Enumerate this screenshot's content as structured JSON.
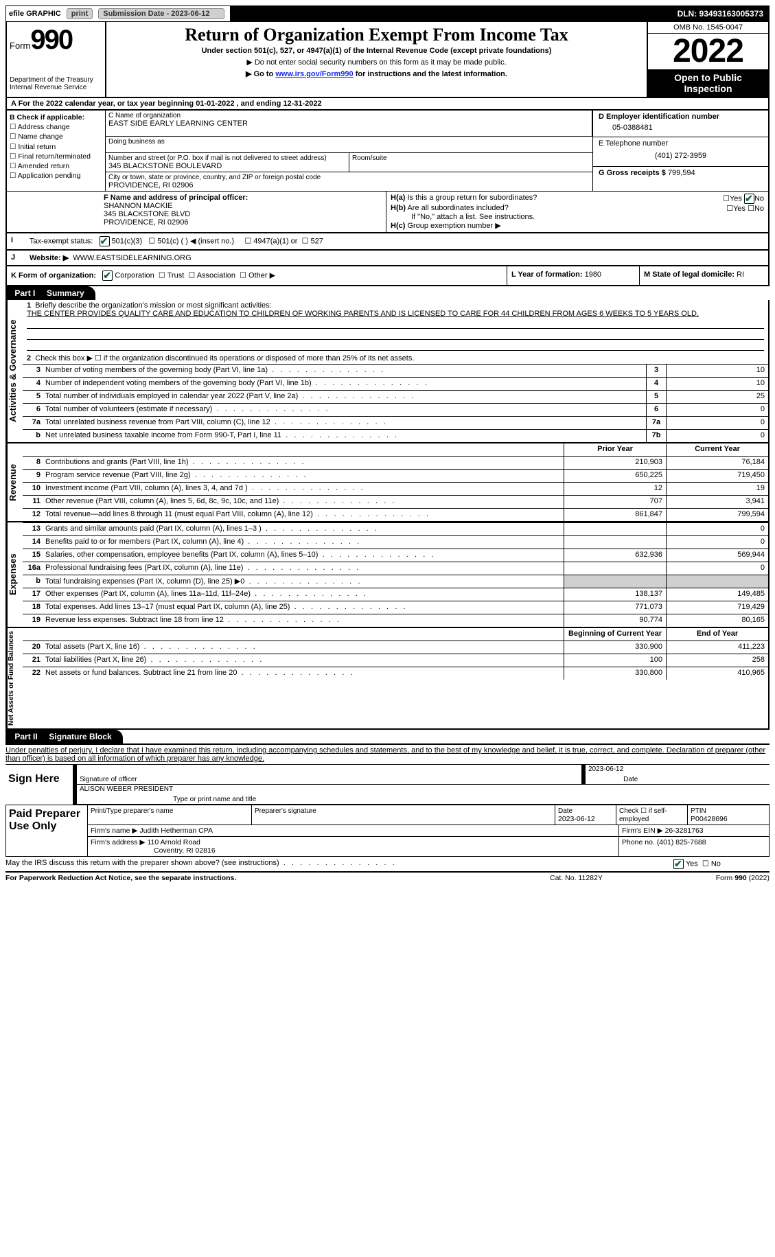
{
  "topbar": {
    "efile_label": "efile GRAPHIC",
    "print_btn": "print",
    "submission_label": "Submission Date - 2023-06-12",
    "dln_label": "DLN: 93493163005373"
  },
  "header": {
    "form_word": "Form",
    "form_number": "990",
    "dept": "Department of the Treasury",
    "irs": "Internal Revenue Service",
    "title": "Return of Organization Exempt From Income Tax",
    "subtitle": "Under section 501(c), 527, or 4947(a)(1) of the Internal Revenue Code (except private foundations)",
    "note1": "▶ Do not enter social security numbers on this form as it may be made public.",
    "note2_pre": "▶ Go to ",
    "note2_link": "www.irs.gov/Form990",
    "note2_post": " for instructions and the latest information.",
    "omb": "OMB No. 1545-0047",
    "year": "2022",
    "open_l1": "Open to Public",
    "open_l2": "Inspection"
  },
  "rowA": "A For the 2022 calendar year, or tax year beginning 01-01-2022   , and ending 12-31-2022",
  "boxB": {
    "label": "B Check if applicable:",
    "items": [
      "Address change",
      "Name change",
      "Initial return",
      "Final return/terminated",
      "Amended return",
      "Application pending"
    ]
  },
  "boxC": {
    "label": "C Name of organization",
    "name": "EAST SIDE EARLY LEARNING CENTER",
    "dba_label": "Doing business as",
    "street_label": "Number and street (or P.O. box if mail is not delivered to street address)",
    "room_label": "Room/suite",
    "street": "345 BLACKSTONE BOULEVARD",
    "city_label": "City or town, state or province, country, and ZIP or foreign postal code",
    "city": "PROVIDENCE, RI  02906"
  },
  "boxD": {
    "label": "D Employer identification number",
    "value": "05-0388481"
  },
  "boxE": {
    "label": "E Telephone number",
    "value": "(401) 272-3959"
  },
  "boxG": {
    "label": "G Gross receipts $",
    "value": "799,594"
  },
  "boxF": {
    "label": "F Name and address of principal officer:",
    "name": "SHANNON MACKIE",
    "street": "345 BLACKSTONE BLVD",
    "city": "PROVIDENCE, RI  02906"
  },
  "boxH": {
    "a_label": "Is this a group return for subordinates?",
    "a_prefix": "H(a)",
    "b_label": "Are all subordinates included?",
    "b_prefix": "H(b)",
    "b_note": "If \"No,\" attach a list. See instructions.",
    "c_prefix": "H(c)",
    "c_label": "Group exemption number ▶",
    "yes": "Yes",
    "no": "No"
  },
  "boxI": {
    "label": "Tax-exempt status:",
    "opt1": "501(c)(3)",
    "opt2": "501(c) (   ) ◀ (insert no.)",
    "opt3": "4947(a)(1) or",
    "opt4": "527"
  },
  "boxJ": {
    "label": "Website: ▶",
    "value": "WWW.EASTSIDELEARNING.ORG"
  },
  "boxK": {
    "label": "K Form of organization:",
    "opts": [
      "Corporation",
      "Trust",
      "Association",
      "Other ▶"
    ]
  },
  "boxL": {
    "label": "L Year of formation:",
    "value": "1980"
  },
  "boxM": {
    "label": "M State of legal domicile:",
    "value": "RI"
  },
  "part1": {
    "title": "Part I",
    "name": "Summary",
    "mission_label": "Briefly describe the organization's mission or most significant activities:",
    "mission": "THE CENTER PROVIDES QUALITY CARE AND EDUCATION TO CHILDREN OF WORKING PARENTS AND IS LICENSED TO CARE FOR 44 CHILDREN FROM AGES 6 WEEKS TO 5 YEARS OLD.",
    "line2": "Check this box ▶ ☐ if the organization discontinued its operations or disposed of more than 25% of its net assets.",
    "tabs": {
      "gov": "Activities & Governance",
      "rev": "Revenue",
      "exp": "Expenses",
      "net": "Net Assets or Fund Balances"
    },
    "lines_gov": [
      {
        "no": "3",
        "txt": "Number of voting members of the governing body (Part VI, line 1a)",
        "box": "3",
        "val": "10"
      },
      {
        "no": "4",
        "txt": "Number of independent voting members of the governing body (Part VI, line 1b)",
        "box": "4",
        "val": "10"
      },
      {
        "no": "5",
        "txt": "Total number of individuals employed in calendar year 2022 (Part V, line 2a)",
        "box": "5",
        "val": "25"
      },
      {
        "no": "6",
        "txt": "Total number of volunteers (estimate if necessary)",
        "box": "6",
        "val": "0"
      },
      {
        "no": "7a",
        "txt": "Total unrelated business revenue from Part VIII, column (C), line 12",
        "box": "7a",
        "val": "0"
      },
      {
        "no": "b",
        "txt": "Net unrelated business taxable income from Form 990-T, Part I, line 11",
        "box": "7b",
        "val": "0"
      }
    ],
    "col_hdr": {
      "prior": "Prior Year",
      "current": "Current Year",
      "begin": "Beginning of Current Year",
      "end": "End of Year"
    },
    "lines_rev": [
      {
        "no": "8",
        "txt": "Contributions and grants (Part VIII, line 1h)",
        "p": "210,903",
        "c": "76,184"
      },
      {
        "no": "9",
        "txt": "Program service revenue (Part VIII, line 2g)",
        "p": "650,225",
        "c": "719,450"
      },
      {
        "no": "10",
        "txt": "Investment income (Part VIII, column (A), lines 3, 4, and 7d )",
        "p": "12",
        "c": "19"
      },
      {
        "no": "11",
        "txt": "Other revenue (Part VIII, column (A), lines 5, 6d, 8c, 9c, 10c, and 11e)",
        "p": "707",
        "c": "3,941"
      },
      {
        "no": "12",
        "txt": "Total revenue—add lines 8 through 11 (must equal Part VIII, column (A), line 12)",
        "p": "861,847",
        "c": "799,594"
      }
    ],
    "lines_exp": [
      {
        "no": "13",
        "txt": "Grants and similar amounts paid (Part IX, column (A), lines 1–3 )",
        "p": "",
        "c": "0"
      },
      {
        "no": "14",
        "txt": "Benefits paid to or for members (Part IX, column (A), line 4)",
        "p": "",
        "c": "0"
      },
      {
        "no": "15",
        "txt": "Salaries, other compensation, employee benefits (Part IX, column (A), lines 5–10)",
        "p": "632,936",
        "c": "569,944"
      },
      {
        "no": "16a",
        "txt": "Professional fundraising fees (Part IX, column (A), line 11e)",
        "p": "",
        "c": "0"
      },
      {
        "no": "b",
        "txt": "Total fundraising expenses (Part IX, column (D), line 25) ▶0",
        "p": "GREY",
        "c": "GREY"
      },
      {
        "no": "17",
        "txt": "Other expenses (Part IX, column (A), lines 11a–11d, 11f–24e)",
        "p": "138,137",
        "c": "149,485"
      },
      {
        "no": "18",
        "txt": "Total expenses. Add lines 13–17 (must equal Part IX, column (A), line 25)",
        "p": "771,073",
        "c": "719,429"
      },
      {
        "no": "19",
        "txt": "Revenue less expenses. Subtract line 18 from line 12",
        "p": "90,774",
        "c": "80,165"
      }
    ],
    "lines_net": [
      {
        "no": "20",
        "txt": "Total assets (Part X, line 16)",
        "p": "330,900",
        "c": "411,223"
      },
      {
        "no": "21",
        "txt": "Total liabilities (Part X, line 26)",
        "p": "100",
        "c": "258"
      },
      {
        "no": "22",
        "txt": "Net assets or fund balances. Subtract line 21 from line 20",
        "p": "330,800",
        "c": "410,965"
      }
    ]
  },
  "part2": {
    "title": "Part II",
    "name": "Signature Block",
    "decl": "Under penalties of perjury, I declare that I have examined this return, including accompanying schedules and statements, and to the best of my knowledge and belief, it is true, correct, and complete. Declaration of preparer (other than officer) is based on all information of which preparer has any knowledge.",
    "sign_here": "Sign Here",
    "sig_officer": "Signature of officer",
    "sig_date": "2023-06-12",
    "date_label": "Date",
    "officer_name": "ALISON WEBER  PRESIDENT",
    "type_name": "Type or print name and title",
    "paid_prep": "Paid Preparer Use Only",
    "p_name_label": "Print/Type preparer's name",
    "p_sig_label": "Preparer's signature",
    "p_date_label": "Date",
    "p_date": "2023-06-12",
    "p_check_label": "Check ☐ if self-employed",
    "ptin_label": "PTIN",
    "ptin": "P00428696",
    "firm_name_label": "Firm's name    ▶",
    "firm_name": "Judith Hetherman CPA",
    "firm_ein_label": "Firm's EIN ▶",
    "firm_ein": "26-3281763",
    "firm_addr_label": "Firm's address ▶",
    "firm_addr1": "110 Arnold Road",
    "firm_addr2": "Coventry, RI  02816",
    "phone_label": "Phone no.",
    "phone": "(401) 825-7688",
    "discuss": "May the IRS discuss this return with the preparer shown above? (see instructions)",
    "paperwork": "For Paperwork Reduction Act Notice, see the separate instructions.",
    "cat": "Cat. No. 11282Y",
    "form_footer": "Form 990 (2022)"
  },
  "colors": {
    "bg": "#ffffff",
    "text": "#000000",
    "link": "#1a2aee",
    "check": "#0a6e3c",
    "grey": "#d0d0d0"
  }
}
